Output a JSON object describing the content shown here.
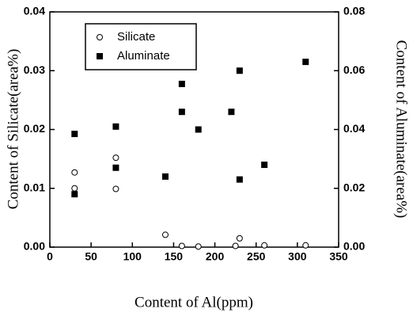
{
  "chart_data": {
    "type": "scatter",
    "x_label": "Content of Al(ppm)",
    "y_label": "Content of Silicate(area%)",
    "y2_label": "Content of Aluminate(area%)",
    "xlim": [
      0,
      350
    ],
    "xticks": [
      0,
      50,
      100,
      150,
      200,
      250,
      300,
      350
    ],
    "ylim": [
      0,
      0.04
    ],
    "yticks": [
      {
        "value": 0,
        "label": "0.00"
      },
      0.01,
      0.02,
      0.03,
      0.04
    ],
    "y2lim": [
      0,
      0.08
    ],
    "y2ticks": [
      {
        "value": 0,
        "label": "0.00"
      },
      0.02,
      0.04,
      0.06,
      0.08
    ],
    "legend": "upper left",
    "series": [
      {
        "name": "Silicate",
        "marker": "open-circle",
        "color": "#000000",
        "x": [
          30,
          30,
          80,
          80,
          140,
          160,
          180,
          225,
          230,
          260,
          310
        ],
        "values": [
          0.0127,
          0.01,
          0.0152,
          0.0099,
          0.0021,
          0.0002,
          0.0001,
          0.0002,
          0.0015,
          0.0003,
          0.0003
        ]
      },
      {
        "name": "Aluminate",
        "marker": "filled-square",
        "color": "#000000",
        "axis": "y2",
        "x": [
          30,
          30,
          80,
          80,
          140,
          160,
          160,
          180,
          220,
          230,
          230,
          260,
          310
        ],
        "values": [
          0.0385,
          0.018,
          0.041,
          0.027,
          0.024,
          0.0555,
          0.046,
          0.04,
          0.046,
          0.06,
          0.023,
          0.028,
          0.063
        ]
      }
    ]
  }
}
